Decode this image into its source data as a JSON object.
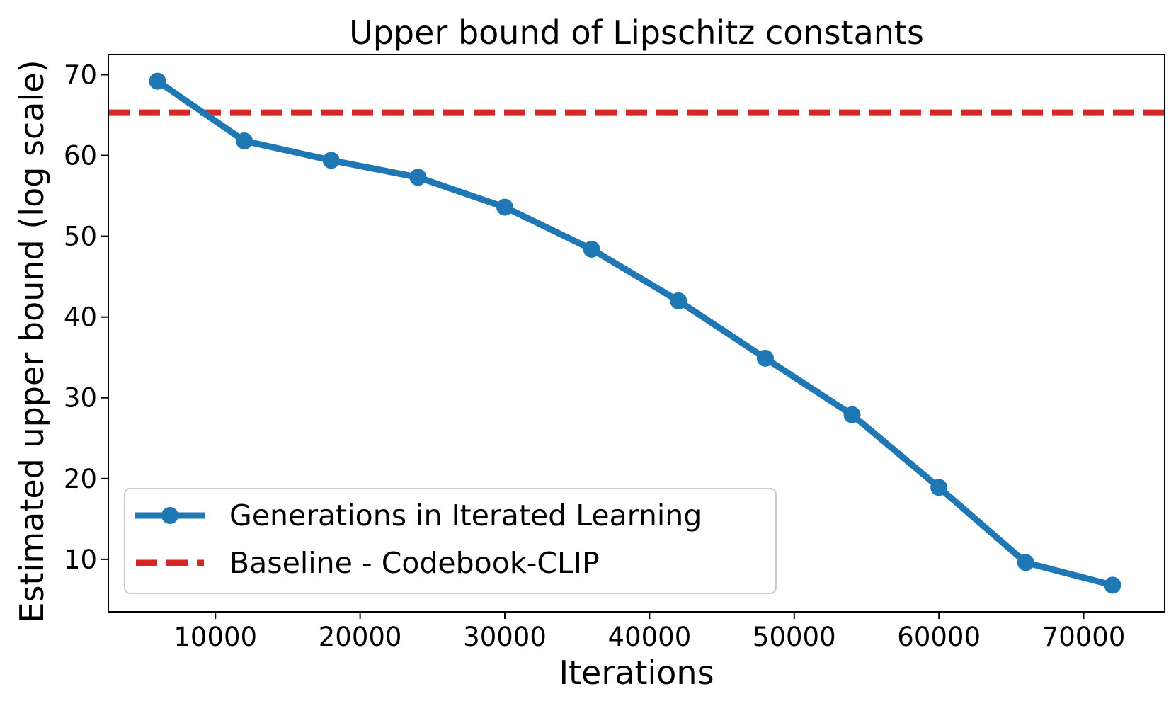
{
  "chart_data": {
    "type": "line",
    "title": "Upper bound of Lipschitz constants",
    "xlabel": "Iterations",
    "ylabel": "Estimated upper bound (log scale)",
    "xlim": [
      2600,
      75600
    ],
    "ylim": [
      3.5,
      72.5
    ],
    "xticks": [
      10000,
      20000,
      30000,
      40000,
      50000,
      60000,
      70000
    ],
    "xtick_labels": [
      "10000",
      "20000",
      "30000",
      "40000",
      "50000",
      "60000",
      "70000"
    ],
    "yticks": [
      10,
      20,
      30,
      40,
      50,
      60,
      70
    ],
    "ytick_labels": [
      "10",
      "20",
      "30",
      "40",
      "50",
      "60",
      "70"
    ],
    "grid": false,
    "legend_position": "lower-left",
    "series": [
      {
        "name": "Generations in Iterated Learning",
        "color": "#1f77b4",
        "style": "solid",
        "marker": "circle",
        "x": [
          6000,
          12000,
          18000,
          24000,
          30000,
          36000,
          42000,
          48000,
          54000,
          60000,
          66000,
          72000
        ],
        "y": [
          69.2,
          61.8,
          59.4,
          57.3,
          53.6,
          48.4,
          42.0,
          34.9,
          27.9,
          18.9,
          9.6,
          6.8
        ]
      },
      {
        "name": "Baseline - Codebook-CLIP",
        "color": "#d62728",
        "style": "dashed",
        "marker": "none",
        "y_constant": 65.3
      }
    ]
  }
}
